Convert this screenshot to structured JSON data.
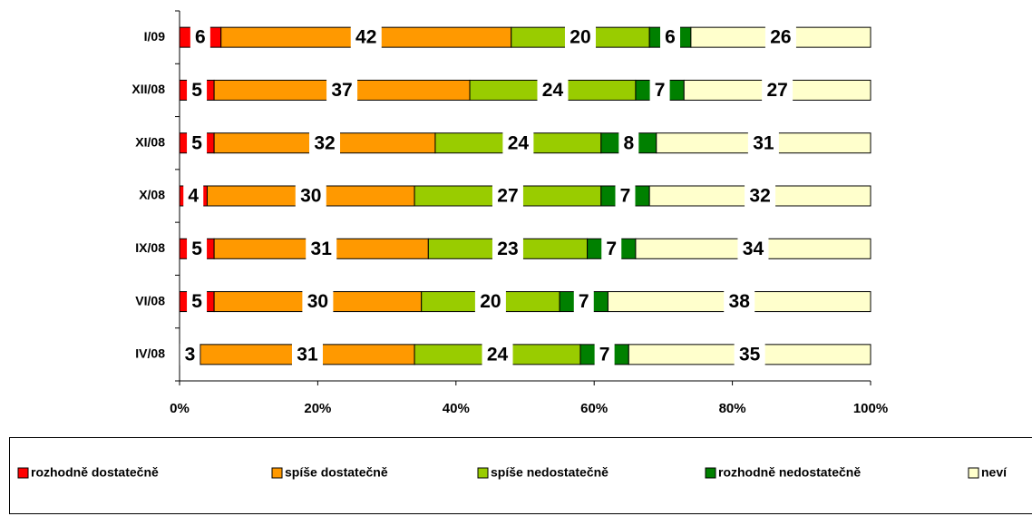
{
  "chart_data": {
    "type": "stacked-bar-horizontal",
    "categories": [
      "I/09",
      "XII/08",
      "XI/08",
      "X/08",
      "IX/08",
      "VI/08",
      "IV/08"
    ],
    "series": [
      {
        "name": "rozhodně dostatečně",
        "color": "#ff0000",
        "values": [
          6,
          5,
          5,
          4,
          5,
          5,
          3
        ]
      },
      {
        "name": "spíše dostatečně",
        "color": "#ff9900",
        "values": [
          42,
          37,
          32,
          30,
          31,
          30,
          31
        ]
      },
      {
        "name": "spíše nedostatečně",
        "color": "#99cc00",
        "values": [
          20,
          24,
          24,
          27,
          23,
          20,
          24
        ]
      },
      {
        "name": "rozhodně nedostatečně",
        "color": "#008000",
        "values": [
          6,
          7,
          8,
          7,
          7,
          7,
          7
        ]
      },
      {
        "name": "neví",
        "color": "#ffffcc",
        "values": [
          26,
          27,
          31,
          32,
          34,
          38,
          35
        ]
      }
    ],
    "xlim": [
      0,
      100
    ],
    "xticks": [
      {
        "value": 0,
        "label": "0%"
      },
      {
        "value": 20,
        "label": "20%"
      },
      {
        "value": 40,
        "label": "40%"
      },
      {
        "value": 60,
        "label": "60%"
      },
      {
        "value": 80,
        "label": "80%"
      },
      {
        "value": 100,
        "label": "100%"
      }
    ]
  }
}
